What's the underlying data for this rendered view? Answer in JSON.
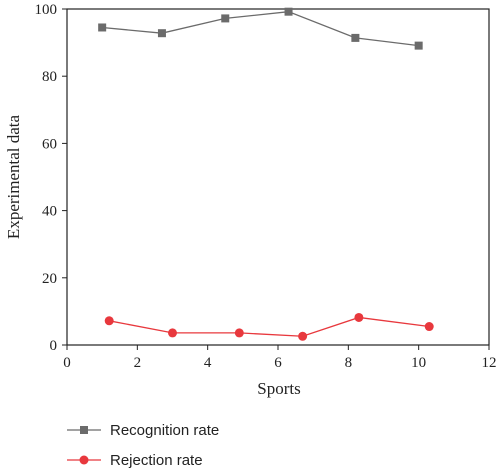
{
  "chart_data": {
    "type": "line",
    "xlabel": "Sports",
    "ylabel": "Experimental data",
    "xlim": [
      0,
      12
    ],
    "ylim": [
      0,
      100
    ],
    "xticks": [
      "0",
      "2",
      "4",
      "6",
      "8",
      "10",
      "12"
    ],
    "yticks": [
      "0",
      "20",
      "40",
      "60",
      "80",
      "100"
    ],
    "grid": false,
    "legend_position": "bottom-left",
    "series": [
      {
        "name": "Recognition rate",
        "color": "#6b6b6b",
        "marker": "square",
        "points": [
          {
            "x": 1.0,
            "y": 94.5
          },
          {
            "x": 2.7,
            "y": 92.8
          },
          {
            "x": 4.5,
            "y": 97.2
          },
          {
            "x": 6.3,
            "y": 99.2
          },
          {
            "x": 8.2,
            "y": 91.4
          },
          {
            "x": 10.0,
            "y": 89.1
          }
        ]
      },
      {
        "name": "Rejection rate",
        "color": "#e8383d",
        "marker": "circle",
        "points": [
          {
            "x": 1.2,
            "y": 7.2
          },
          {
            "x": 3.0,
            "y": 3.6
          },
          {
            "x": 4.9,
            "y": 3.6
          },
          {
            "x": 6.7,
            "y": 2.6
          },
          {
            "x": 8.3,
            "y": 8.2
          },
          {
            "x": 10.3,
            "y": 5.5
          }
        ]
      }
    ]
  }
}
